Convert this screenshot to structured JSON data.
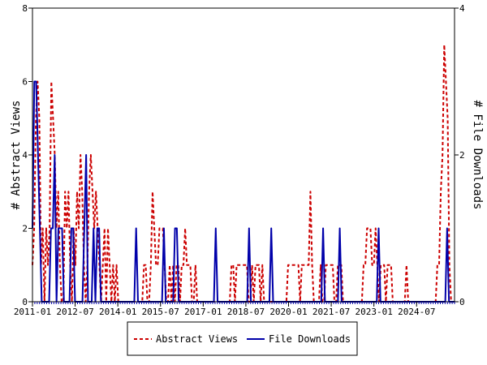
{
  "chart_data": {
    "type": "line",
    "x_tick_labels": [
      "2011-01",
      "2012-07",
      "2014-01",
      "2015-07",
      "2017-01",
      "2018-07",
      "2020-01",
      "2021-07",
      "2023-01",
      "2024-07"
    ],
    "x_range": [
      "2011-01",
      "2025-11"
    ],
    "y_left": {
      "label": "# Abstract Views",
      "range": [
        0,
        8
      ],
      "ticks": [
        "0",
        "2",
        "4",
        "6",
        "8"
      ]
    },
    "y_right": {
      "label": "# File Downloads",
      "range": [
        0,
        4
      ],
      "ticks": [
        "0",
        "2",
        "4"
      ]
    },
    "legend": {
      "placement": "bottom"
    },
    "series": [
      {
        "name": "Abstract Views",
        "axis": "left",
        "color": "#cc0000",
        "style": "dashed",
        "values": [
          1,
          2,
          5,
          6,
          5,
          1,
          2,
          0,
          2,
          1,
          2,
          6,
          5,
          4,
          2,
          3,
          1,
          0,
          0,
          3,
          2,
          3,
          1,
          0,
          2,
          1,
          3,
          2,
          4,
          3,
          1,
          0,
          1,
          3,
          4,
          3,
          2,
          3,
          2,
          1,
          0,
          1,
          2,
          0,
          2,
          1,
          0,
          1,
          0,
          1,
          0,
          0,
          0,
          0,
          0,
          0,
          0,
          0,
          0,
          0,
          0,
          0,
          0,
          0,
          0,
          1,
          1,
          0,
          0,
          1,
          3,
          2,
          1,
          1,
          2,
          2,
          2,
          1,
          0,
          0,
          1,
          0,
          1,
          0,
          1,
          1,
          0,
          1,
          1,
          2,
          1,
          1,
          1,
          0,
          0,
          1,
          0,
          0,
          0,
          0,
          0,
          0,
          0,
          0,
          0,
          0,
          0,
          0,
          0,
          0,
          0,
          0,
          0,
          0,
          0,
          0,
          1,
          1,
          0,
          1,
          1,
          1,
          1,
          1,
          1,
          1,
          0,
          0,
          1,
          0,
          1,
          1,
          1,
          0,
          1,
          0,
          0,
          0,
          0,
          0,
          0,
          0,
          0,
          0,
          0,
          0,
          0,
          0,
          0,
          1,
          1,
          1,
          1,
          1,
          1,
          1,
          0,
          1,
          1,
          1,
          1,
          1,
          3,
          1,
          0,
          0,
          0,
          0,
          1,
          0,
          0,
          1,
          1,
          1,
          1,
          1,
          0,
          0,
          1,
          1,
          1,
          0,
          0,
          0,
          0,
          0,
          0,
          0,
          0,
          0,
          0,
          0,
          0,
          1,
          1,
          2,
          2,
          2,
          1,
          1,
          2,
          1,
          0,
          1,
          1,
          1,
          0,
          1,
          1,
          1,
          0,
          0,
          0,
          0,
          0,
          0,
          0,
          0,
          1,
          0,
          0,
          0,
          0,
          0,
          0,
          0,
          0,
          0,
          0,
          0,
          0,
          0,
          0,
          0,
          0,
          0,
          1,
          1,
          3,
          4,
          7,
          6,
          5,
          1,
          0,
          0,
          0
        ]
      },
      {
        "name": "File Downloads",
        "axis": "right",
        "color": "#0000aa",
        "style": "solid",
        "values": [
          1,
          3,
          3,
          2,
          1,
          0,
          0,
          0,
          0,
          0,
          1,
          1,
          2,
          0,
          1,
          1,
          1,
          0,
          0,
          0,
          0,
          1,
          1,
          0,
          0,
          0,
          0,
          0,
          1,
          2,
          0,
          0,
          0,
          1,
          0,
          1,
          1,
          0,
          0,
          0,
          0,
          0,
          0,
          0,
          0,
          0,
          0,
          0,
          0,
          0,
          0,
          0,
          0,
          0,
          0,
          0,
          1,
          0,
          0,
          0,
          0,
          0,
          0,
          0,
          0,
          0,
          0,
          0,
          0,
          0,
          0,
          1,
          0,
          0,
          0,
          0,
          0,
          1,
          1,
          0,
          0,
          0,
          0,
          0,
          0,
          0,
          0,
          0,
          0,
          0,
          0,
          0,
          0,
          0,
          0,
          0,
          0,
          0,
          0,
          1,
          0,
          0,
          0,
          0,
          0,
          0,
          0,
          0,
          0,
          0,
          0,
          0,
          0,
          0,
          0,
          0,
          0,
          1,
          0,
          0,
          0,
          0,
          0,
          0,
          0,
          0,
          0,
          0,
          0,
          1,
          0,
          0,
          0,
          0,
          0,
          0,
          0,
          0,
          0,
          0,
          0,
          0,
          0,
          0,
          0,
          0,
          0,
          0,
          0,
          0,
          0,
          0,
          0,
          0,
          0,
          0,
          0,
          1,
          0,
          0,
          0,
          0,
          0,
          0,
          0,
          0,
          1,
          0,
          0,
          0,
          0,
          0,
          0,
          0,
          0,
          0,
          0,
          0,
          0,
          0,
          0,
          0,
          0,
          0,
          0,
          0,
          0,
          1,
          0,
          0,
          0,
          0,
          0,
          0,
          0,
          0,
          0,
          0,
          0,
          0,
          0,
          0,
          0,
          0,
          0,
          0,
          0,
          0,
          0,
          0,
          0,
          0,
          0,
          0,
          0,
          0,
          0,
          0,
          0,
          0,
          0,
          0,
          0,
          0,
          1,
          0,
          0,
          0,
          0
        ]
      }
    ]
  }
}
